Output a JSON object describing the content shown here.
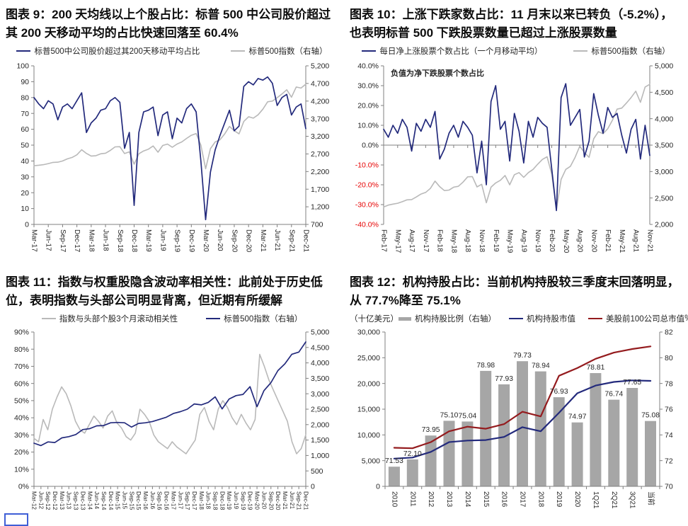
{
  "page": {
    "background": "#ffffff",
    "artifact_box_border_color": "#3f5fd6",
    "axis_color": "#808080",
    "tick_text_color": "#262626"
  },
  "chart_data": [
    {
      "type": "line",
      "title": "图表 9：200 天均线以上个股占比：标普 500 中公司股价超过其 200 天移动平均的占比快速回落至 60.4%",
      "legend_position": "top",
      "ylim_left": [
        0,
        100
      ],
      "ylim_right": [
        700,
        5200
      ],
      "left_ticks": [
        [
          100,
          "100"
        ],
        [
          90,
          "90"
        ],
        [
          80,
          "80"
        ],
        [
          70,
          "70"
        ],
        [
          60,
          "60"
        ],
        [
          50,
          "50"
        ],
        [
          40,
          "40"
        ],
        [
          30,
          "30"
        ],
        [
          20,
          "20"
        ],
        [
          10,
          "10"
        ],
        [
          0,
          "0"
        ]
      ],
      "right_ticks": [
        [
          5200,
          "5,200"
        ],
        [
          4700,
          "4,700"
        ],
        [
          4200,
          "4,200"
        ],
        [
          3700,
          "3,700"
        ],
        [
          3200,
          "3,200"
        ],
        [
          2700,
          "2,700"
        ],
        [
          2200,
          "2,200"
        ],
        [
          1700,
          "1,700"
        ],
        [
          1200,
          "1,200"
        ],
        [
          700,
          "700"
        ]
      ],
      "x_labels": [
        "Mar-17",
        "Jun-17",
        "Sep-17",
        "Dec-17",
        "Mar-18",
        "Jun-18",
        "Sep-18",
        "Dec-18",
        "Mar-19",
        "Jun-19",
        "Sep-19",
        "Dec-19",
        "Mar-20",
        "Jun-20",
        "Sep-20",
        "Dec-20",
        "Mar-21",
        "Jun-21",
        "Sep-21",
        "Dec-21"
      ],
      "series": [
        {
          "name": "标普500中公司股价超过其200天移动平均占比",
          "axis": "left",
          "color": "#232a7c",
          "w": 1.7,
          "z": 2,
          "values": [
            80,
            76,
            73,
            78,
            76,
            66,
            74,
            76,
            73,
            78,
            83,
            58,
            64,
            67,
            72,
            73,
            78,
            80,
            77,
            48,
            58,
            12,
            58,
            71,
            72,
            74,
            56,
            69,
            71,
            54,
            67,
            64,
            73,
            76,
            71,
            40,
            3,
            33,
            47,
            56,
            64,
            72,
            59,
            62,
            87,
            90,
            88,
            92,
            91,
            93,
            89,
            75,
            80,
            82,
            69,
            74,
            76,
            60.4
          ]
        },
        {
          "name": "标普500指数（右轴）",
          "axis": "right",
          "color": "#b9b9b9",
          "w": 1.6,
          "z": 1,
          "values": [
            2365,
            2380,
            2395,
            2425,
            2460,
            2465,
            2500,
            2560,
            2600,
            2675,
            2820,
            2715,
            2640,
            2650,
            2705,
            2720,
            2800,
            2900,
            2905,
            2710,
            2760,
            2410,
            2705,
            2785,
            2835,
            2925,
            2750,
            2940,
            2980,
            2890,
            2980,
            3040,
            3140,
            3230,
            3280,
            2950,
            2280,
            2850,
            3040,
            3100,
            3270,
            3480,
            3360,
            3270,
            3620,
            3755,
            3715,
            3810,
            3970,
            4180,
            4200,
            4295,
            4400,
            4520,
            4310,
            4600,
            4570,
            4680
          ]
        }
      ]
    },
    {
      "type": "line",
      "title": "图表 10：上涨下跌家数占比：11 月末以来已转负（-5.2%），也表明标普 500 下跌股票数量已超过上涨股票数量",
      "legend_position": "top",
      "annotation": "负值为净下跌股票个数占比",
      "annotation_y": 35,
      "x_axis_at": 0,
      "negative_tick_color": "#e60000",
      "ylim_left": [
        -40,
        40
      ],
      "ylim_right": [
        2000,
        5000
      ],
      "left_ticks": [
        [
          40,
          "40.0%"
        ],
        [
          30,
          "30.0%"
        ],
        [
          20,
          "20.0%"
        ],
        [
          10,
          "10.0%"
        ],
        [
          0,
          "0.0%"
        ],
        [
          -10,
          "-10.0%"
        ],
        [
          -20,
          "-20.0%"
        ],
        [
          -30,
          "-30.0%"
        ],
        [
          -40,
          "-40.0%"
        ]
      ],
      "right_ticks": [
        [
          5000,
          "5,000"
        ],
        [
          4500,
          "4,500"
        ],
        [
          4000,
          "4,000"
        ],
        [
          3500,
          "3,500"
        ],
        [
          3000,
          "3,000"
        ],
        [
          2500,
          "2,500"
        ],
        [
          2000,
          "2,000"
        ]
      ],
      "x_labels": [
        "Feb-17",
        "May-17",
        "Aug-17",
        "Nov-17",
        "Feb-18",
        "May-18",
        "Aug-18",
        "Nov-18",
        "Feb-19",
        "May-19",
        "Aug-19",
        "Nov-19",
        "Feb-20",
        "May-20",
        "Aug-20",
        "Nov-20",
        "Feb-21",
        "May-21",
        "Aug-21",
        "Nov-21"
      ],
      "series": [
        {
          "name": "每日净上涨股票个数占比（一个月移动平均）",
          "axis": "left",
          "color": "#232a7c",
          "w": 1.7,
          "z": 2,
          "values": [
            8,
            4,
            10,
            6,
            13,
            9,
            -3,
            11,
            7,
            13,
            9,
            17,
            -7,
            -2,
            6,
            10,
            4,
            12,
            9,
            5,
            -14,
            2,
            -20,
            22,
            30,
            8,
            12,
            -8,
            16,
            7,
            -9,
            12,
            4,
            14,
            11,
            9,
            -12,
            -33,
            24,
            31,
            10,
            14,
            18,
            -6,
            2,
            26,
            15,
            6,
            19,
            14,
            16,
            5,
            -4,
            8,
            13,
            -7,
            10,
            -5.2
          ]
        },
        {
          "name": "标普500指数（右轴）",
          "axis": "right",
          "color": "#b9b9b9",
          "w": 1.6,
          "z": 1,
          "values": [
            2330,
            2365,
            2385,
            2400,
            2430,
            2465,
            2470,
            2520,
            2575,
            2605,
            2680,
            2820,
            2715,
            2640,
            2650,
            2705,
            2720,
            2800,
            2900,
            2905,
            2710,
            2760,
            2410,
            2705,
            2785,
            2835,
            2925,
            2750,
            2940,
            2980,
            2890,
            2980,
            3040,
            3140,
            3230,
            3280,
            2950,
            2280,
            2850,
            3040,
            3100,
            3270,
            3480,
            3360,
            3270,
            3620,
            3755,
            3715,
            3810,
            3970,
            4180,
            4200,
            4295,
            4400,
            4520,
            4310,
            4600,
            4650
          ]
        }
      ]
    },
    {
      "type": "line",
      "title": "图表 11：指数与权重股隐含波动率相关性：此前处于历史低位，表明指数与头部公司明显背离，但近期有所缓解",
      "legend_position": "top",
      "ylim_left": [
        0,
        90
      ],
      "ylim_right": [
        0,
        5000
      ],
      "left_ticks": [
        [
          90,
          "90%"
        ],
        [
          80,
          "80%"
        ],
        [
          70,
          "70%"
        ],
        [
          60,
          "60%"
        ],
        [
          50,
          "50%"
        ],
        [
          40,
          "40%"
        ],
        [
          30,
          "30%"
        ],
        [
          20,
          "20%"
        ],
        [
          10,
          "10%"
        ],
        [
          0,
          "0%"
        ]
      ],
      "right_ticks": [
        [
          5000,
          "5,000"
        ],
        [
          4500,
          "4,500"
        ],
        [
          4000,
          "4,000"
        ],
        [
          3500,
          "3,500"
        ],
        [
          3000,
          "3,000"
        ],
        [
          2500,
          "2,500"
        ],
        [
          2000,
          "2,000"
        ],
        [
          1500,
          "1,500"
        ],
        [
          1000,
          "1,000"
        ],
        [
          500,
          "500"
        ],
        [
          0,
          "0"
        ]
      ],
      "x_labels": [
        "Mar-12",
        "Jun-12",
        "Sep-12",
        "Dec-12",
        "Mar-13",
        "Jun-13",
        "Sep-13",
        "Dec-13",
        "Mar-14",
        "Jun-14",
        "Sep-14",
        "Dec-14",
        "Mar-15",
        "Jun-15",
        "Sep-15",
        "Dec-15",
        "Mar-16",
        "Jun-16",
        "Sep-16",
        "Dec-16",
        "Mar-17",
        "Jun-17",
        "Sep-17",
        "Dec-17",
        "Mar-18",
        "Jun-18",
        "Sep-18",
        "Dec-18",
        "Mar-19",
        "Jun-19",
        "Sep-19",
        "Dec-19",
        "Mar-20",
        "Jun-20",
        "Sep-20",
        "Dec-20",
        "Mar-21",
        "Jun-21",
        "Sep-21",
        "Dec-21"
      ],
      "series": [
        {
          "name": "指数与头部个股3个月滚动相关性",
          "axis": "left",
          "color": "#b9b9b9",
          "w": 1.6,
          "z": 1,
          "values": [
            28,
            26,
            39,
            33,
            45,
            52,
            58,
            54,
            47,
            38,
            33,
            31,
            36,
            41,
            38,
            34,
            41,
            44,
            37,
            34,
            29,
            27,
            31,
            45,
            42,
            38,
            30,
            26,
            24,
            22,
            26,
            23,
            21,
            19,
            23,
            27,
            42,
            46,
            38,
            33,
            45,
            50,
            46,
            40,
            36,
            42,
            37,
            33,
            39,
            77,
            70,
            62,
            56,
            50,
            44,
            38,
            26,
            19,
            22,
            30
          ]
        },
        {
          "name": "标普500指数（右轴）",
          "axis": "right",
          "color": "#232a7c",
          "w": 1.7,
          "z": 2,
          "values": [
            1400,
            1320,
            1440,
            1420,
            1570,
            1610,
            1680,
            1840,
            1870,
            1960,
            1970,
            2060,
            2070,
            2060,
            1920,
            2040,
            2060,
            2100,
            2170,
            2240,
            2360,
            2420,
            2500,
            2670,
            2640,
            2720,
            2900,
            2510,
            2830,
            2940,
            2980,
            3230,
            2580,
            3100,
            3360,
            3750,
            3970,
            4280,
            4350,
            4680
          ]
        }
      ]
    },
    {
      "type": "bar",
      "title": "图表 12：机构持股占比：当前机构持股较三季度末回落明显，从 77.7%降至 75.1%",
      "legend_position": "top",
      "unit_left": "（十亿美元）",
      "unit_right": "%",
      "ylim_left": [
        0,
        30000
      ],
      "ylim_right": [
        70,
        82
      ],
      "left_ticks": [
        [
          30000,
          "30,000"
        ],
        [
          25000,
          "25,000"
        ],
        [
          20000,
          "20,000"
        ],
        [
          15000,
          "15,000"
        ],
        [
          10000,
          "10,000"
        ],
        [
          5000,
          "5,000"
        ],
        [
          0,
          "0"
        ]
      ],
      "right_ticks": [
        [
          82,
          "82"
        ],
        [
          80,
          "80"
        ],
        [
          78,
          "78"
        ],
        [
          76,
          "76"
        ],
        [
          74,
          "74"
        ],
        [
          72,
          "72"
        ],
        [
          70,
          "70"
        ]
      ],
      "x_labels": [
        "2010",
        "2011",
        "2012",
        "2013",
        "2014",
        "2015",
        "2016",
        "2017",
        "2018",
        "2019",
        "2020",
        "1Q21",
        "2Q21",
        "3Q21",
        "当前"
      ],
      "bars": {
        "name": "机构持股比例（右轴）",
        "axis": "right",
        "color": "#a6a6a6",
        "values": [
          71.53,
          72.1,
          73.95,
          75.1,
          75.04,
          78.98,
          77.93,
          79.73,
          78.94,
          76.93,
          74.97,
          78.81,
          76.74,
          77.65,
          75.08
        ],
        "labels": [
          "71.53",
          "72.10",
          "73.95",
          "75.10",
          "75.04",
          "78.98",
          "77.93",
          "79.73",
          "78.94",
          "76.93",
          "74.97",
          "78.81",
          "76.74",
          "77.65",
          "75.08"
        ]
      },
      "series": [
        {
          "name": "机构持股市值",
          "axis": "left",
          "color": "#232a7c",
          "w": 2.2,
          "z": 1,
          "values": [
            5400,
            5600,
            6700,
            8600,
            8900,
            9000,
            9600,
            11500,
            10700,
            14300,
            18100,
            19600,
            20300,
            20600,
            20500
          ]
        },
        {
          "name": "美股前100公司总市值",
          "axis": "left",
          "color": "#941b1e",
          "w": 2.2,
          "z": 2,
          "values": [
            7500,
            7400,
            8600,
            10700,
            11600,
            11200,
            12100,
            14500,
            13600,
            21500,
            23000,
            24800,
            26000,
            26700,
            27200
          ]
        }
      ]
    }
  ]
}
